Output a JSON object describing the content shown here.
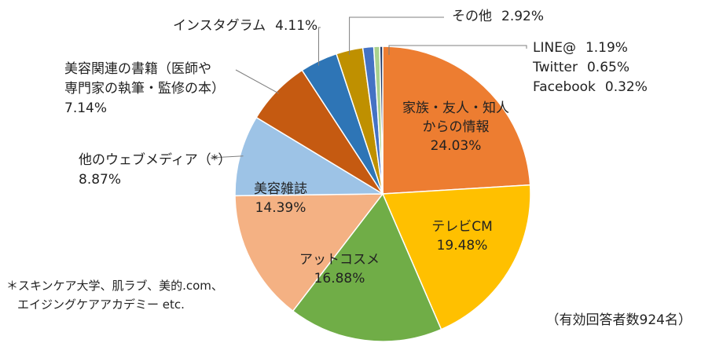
{
  "chart_data": {
    "type": "pie",
    "slices": [
      {
        "label_lines": [
          "家族・友人・知人",
          "からの情報"
        ],
        "percent_text": "24.03%",
        "value": 24.03,
        "color": "#ED7D31"
      },
      {
        "label_lines": [
          "テレビCM"
        ],
        "percent_text": "19.48%",
        "value": 19.48,
        "color": "#FFC000"
      },
      {
        "label_lines": [
          "アットコスメ"
        ],
        "percent_text": "16.88%",
        "value": 16.88,
        "color": "#70AD47"
      },
      {
        "label_lines": [
          "美容雑誌"
        ],
        "percent_text": "14.39%",
        "value": 14.39,
        "color": "#F4B183"
      },
      {
        "label_lines": [
          "他のウェブメディア（*）"
        ],
        "percent_text": "8.87%",
        "value": 8.87,
        "color": "#9DC3E6"
      },
      {
        "label_lines": [
          "美容関連の書籍（医師や",
          "専門家の執筆・監修の本）"
        ],
        "percent_text": "7.14%",
        "value": 7.14,
        "color": "#C55A11"
      },
      {
        "label_lines": [
          "インスタグラム"
        ],
        "percent_text": "4.11%",
        "value": 4.11,
        "color": "#2E75B6"
      },
      {
        "label_lines": [
          "その他"
        ],
        "percent_text": "2.92%",
        "value": 2.92,
        "color": "#BF9000"
      },
      {
        "label_lines": [
          "LINE@"
        ],
        "percent_text": "1.19%",
        "value": 1.19,
        "color": "#4472C4"
      },
      {
        "label_lines": [
          "Twitter"
        ],
        "percent_text": "0.65%",
        "value": 0.65,
        "color": "#A9D18E"
      },
      {
        "label_lines": [
          "Facebook"
        ],
        "percent_text": "0.32%",
        "value": 0.32,
        "color": "#203864"
      }
    ],
    "footnote_lines": [
      "＊スキンケア大学、肌ラブ、美的.com、",
      "エイジングケアアカデミー etc."
    ],
    "respondents_note": "（有効回答者数924名）",
    "title": ""
  }
}
